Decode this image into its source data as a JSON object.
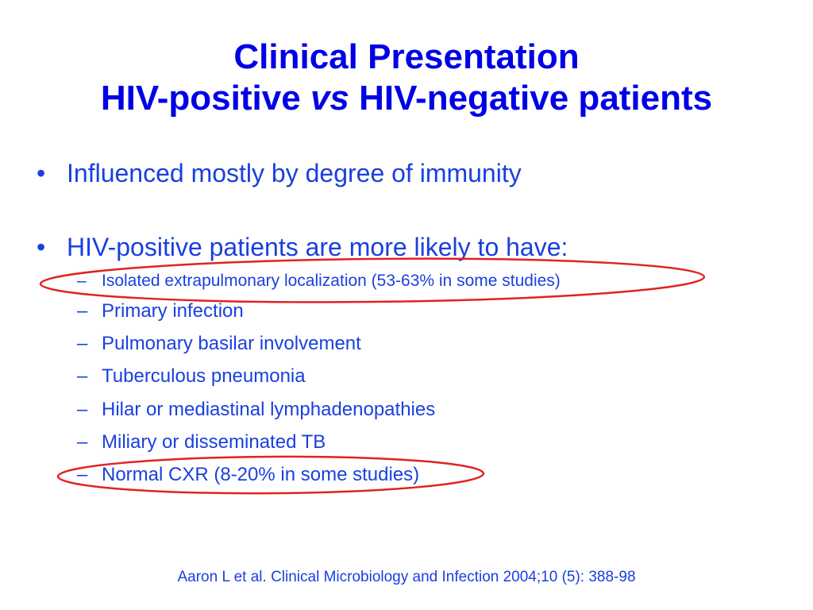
{
  "title": {
    "line1": "Clinical Presentation",
    "line2_a": "HIV-positive",
    "line2_vs": "vs",
    "line2_b": "HIV-negative patients"
  },
  "bullets": [
    "Influenced mostly by degree of immunity",
    "HIV-positive patients are more likely to have:"
  ],
  "bullet_glyph": "•",
  "sub_glyph": "–",
  "sub_items": [
    "Isolated extrapulmonary localization (53-63% in some studies)",
    "Primary infection",
    "Pulmonary basilar involvement",
    "Tuberculous pneumonia",
    "Hilar or mediastinal lymphadenopathies",
    "Miliary or disseminated TB",
    "Normal CXR (8-20% in some studies)"
  ],
  "citation": "Aaron L et al. Clinical Microbiology and Infection 2004;10 (5): 388-98",
  "colors": {
    "title": "#0000e6",
    "body": "#1a3fe0",
    "highlight_ellipse": "#e0231f"
  }
}
